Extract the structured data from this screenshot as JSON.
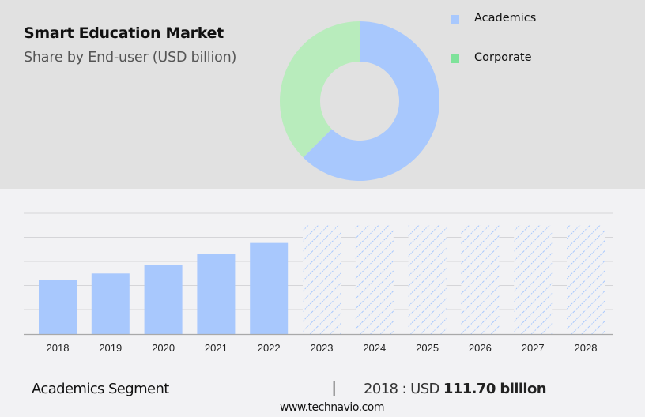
{
  "header": {
    "title": "Smart Education Market",
    "subtitle": "Share by End-user (USD billion)"
  },
  "legend": [
    {
      "label": "Academics",
      "color": "#a8c8fd"
    },
    {
      "label": "Corporate",
      "color": "#7ee29a"
    }
  ],
  "footer": {
    "segment": "Academics Segment",
    "divider": "|",
    "value_prefix": "2018 : USD ",
    "value_bold": "111.70 billion",
    "url": "www.technavio.com"
  },
  "colors": {
    "top_bg": "#e1e1e1",
    "bottom_bg": "#f2f2f4",
    "academics": "#a8c8fd",
    "corporate_donut": "#b8ecbc",
    "corporate_legend": "#7ee29a",
    "grid": "#d5d5d8",
    "axis": "#a9a9a9"
  },
  "chart_data": [
    {
      "type": "pie",
      "subtype": "donut",
      "title": "Smart Education Market",
      "subtitle": "Share by End-user (USD billion)",
      "labels": [
        "Academics",
        "Corporate"
      ],
      "values": [
        62.5,
        37.5
      ],
      "colors": [
        "#a8c8fd",
        "#b8ecbc"
      ],
      "legend_position": "right"
    },
    {
      "type": "bar",
      "title": "Academics Segment",
      "categories": [
        "2018",
        "2019",
        "2020",
        "2021",
        "2022",
        "2023",
        "2024",
        "2025",
        "2026",
        "2027",
        "2028"
      ],
      "values": [
        111.7,
        126.0,
        144.0,
        167.5,
        189.5,
        null,
        null,
        null,
        null,
        null,
        null
      ],
      "forecast": [
        false,
        false,
        false,
        false,
        false,
        true,
        true,
        true,
        true,
        true,
        true
      ],
      "forecast_style": "hatched (values not shown)",
      "xlabel": "",
      "ylabel": "",
      "grid": true,
      "y_ticks_visible": false,
      "annotation": "2018 : USD 111.70 billion"
    }
  ]
}
